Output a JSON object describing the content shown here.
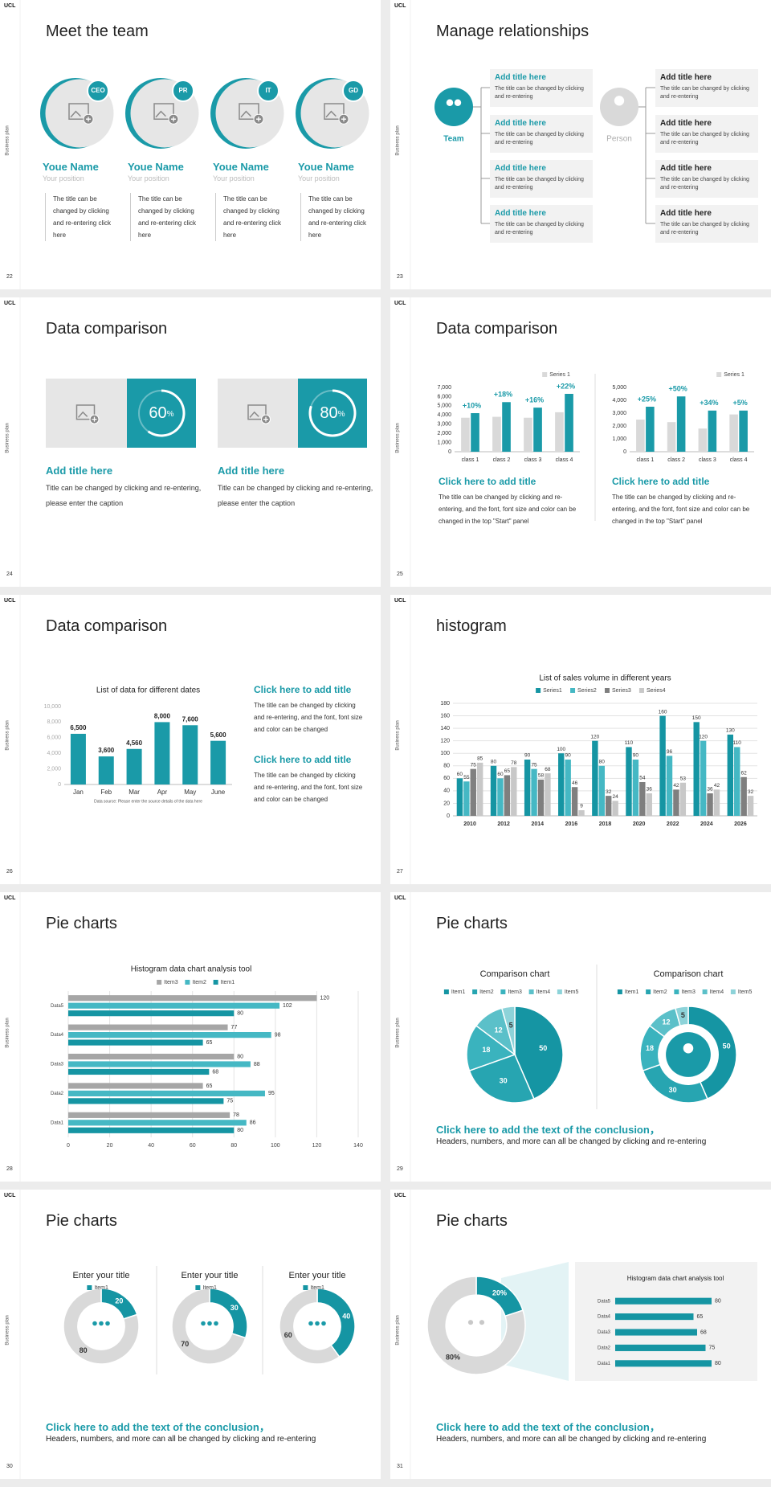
{
  "slides": [
    {
      "number": 22,
      "logo": "UCL",
      "side_text": "Business plan",
      "title": "Meet the team",
      "members": [
        {
          "badge": "CEO",
          "name": "Youe Name",
          "position": "Your position",
          "text": "The title can be changed by clicking and re-entering click here"
        },
        {
          "badge": "PR",
          "name": "Youe Name",
          "position": "Your position",
          "text": "The title can be changed by clicking and re-entering click here"
        },
        {
          "badge": "IT",
          "name": "Youe Name",
          "position": "Your position",
          "text": "The title can be changed by clicking and re-entering click here"
        },
        {
          "badge": "GD",
          "name": "Youe Name",
          "position": "Your position",
          "text": "The title can be changed by clicking and re-entering click here"
        }
      ]
    },
    {
      "number": 23,
      "logo": "UCL",
      "side_text": "Business plan",
      "title": "Manage relationships",
      "groups": [
        {
          "label": "Team",
          "items": [
            {
              "title": "Add title here",
              "text": "The title can be changed by clicking and re-entering"
            },
            {
              "title": "Add title here",
              "text": "The title can be changed by clicking and re-entering"
            },
            {
              "title": "Add title here",
              "text": "The title can be changed by clicking and re-entering"
            },
            {
              "title": "Add title here",
              "text": "The title can be changed by clicking and re-entering"
            }
          ]
        },
        {
          "label": "Person",
          "items": [
            {
              "title": "Add title here",
              "text": "The title can be changed by clicking and re-entering"
            },
            {
              "title": "Add title here",
              "text": "The title can be changed by clicking and re-entering"
            },
            {
              "title": "Add title here",
              "text": "The title can be changed by clicking and re-entering"
            },
            {
              "title": "Add title here",
              "text": "The title can be changed by clicking and re-entering"
            }
          ]
        }
      ]
    },
    {
      "number": 24,
      "logo": "UCL",
      "side_text": "Business plan",
      "title": "Data comparison",
      "cards": [
        {
          "percent": 60,
          "unit": "%",
          "title": "Add title here",
          "text": "Title can be changed by clicking and re-entering, please enter the caption"
        },
        {
          "percent": 80,
          "unit": "%",
          "title": "Add title here",
          "text": "Title can be changed by clicking and re-entering, please enter the caption"
        }
      ]
    },
    {
      "number": 25,
      "logo": "UCL",
      "side_text": "Business plan",
      "title": "Data comparison",
      "blocks": [
        {
          "heading": "Click here to add title",
          "text": "The title can be changed by clicking and re-entering, and the font, font size and color can be changed in the top \"Start\" panel"
        },
        {
          "heading": "Click here to add title",
          "text": "The title can be changed by clicking and re-entering, and the font, font size and color can be changed in the top \"Start\" panel"
        }
      ]
    },
    {
      "number": 26,
      "logo": "UCL",
      "side_text": "Business plan",
      "title": "Data comparison",
      "blocks": [
        {
          "heading": "Click here to add title",
          "text": "The title can be changed by clicking and re-entering, and the font, font size and color can be changed"
        },
        {
          "heading": "Click here to add title",
          "text": "The title can be changed by clicking and re-entering, and the font, font size and color can be changed"
        }
      ]
    },
    {
      "number": 27,
      "logo": "UCL",
      "side_text": "Business plan",
      "title": "histogram"
    },
    {
      "number": 28,
      "logo": "UCL",
      "side_text": "Business plan",
      "title": "Pie charts"
    },
    {
      "number": 29,
      "logo": "UCL",
      "side_text": "Business plan",
      "title": "Pie charts",
      "conclusion": {
        "heading": "Click here to add the text of the conclusion，",
        "text": "Headers, numbers, and more can all be changed by clicking and re-entering"
      }
    },
    {
      "number": 30,
      "logo": "UCL",
      "side_text": "Business plan",
      "title": "Pie charts",
      "conclusion": {
        "heading": "Click here to add the text of the conclusion，",
        "text": "Headers, numbers, and more can all be changed by clicking and re-entering"
      }
    },
    {
      "number": 31,
      "logo": "UCL",
      "side_text": "Business plan",
      "title": "Pie charts",
      "conclusion": {
        "heading": "Click here to add the text of the conclusion，",
        "text": "Headers, numbers, and more can all be changed by clicking and re-entering"
      }
    }
  ],
  "chart_data": [
    {
      "type": "bar",
      "categories": [
        "class 1",
        "class 2",
        "class 3",
        "class 4"
      ],
      "series": [
        {
          "name": "Series 1",
          "color": "#d9d9d9",
          "values": [
            3700,
            3800,
            3700,
            4300
          ]
        },
        {
          "color": "#1a9aa8",
          "values": [
            4200,
            5400,
            4800,
            6300
          ]
        }
      ],
      "annotations": [
        "+10%",
        "+18%",
        "+16%",
        "+22%"
      ],
      "ylim": [
        0,
        7000
      ],
      "yticks": [
        0,
        {
          "value": 1000,
          "label": "1,000"
        },
        {
          "value": 2000,
          "label": "2,000"
        },
        {
          "value": 3000,
          "label": "3,000"
        },
        {
          "value": 4000,
          "label": "4,000"
        },
        {
          "value": 5000,
          "label": "5,000"
        },
        {
          "value": 6000,
          "label": "6,000"
        },
        {
          "value": 7000,
          "label": "7,000"
        }
      ],
      "grid": false,
      "legend": "top-right"
    },
    {
      "type": "bar",
      "categories": [
        "class 1",
        "class 2",
        "class 3",
        "class 4"
      ],
      "series": [
        {
          "name": "Series 1",
          "color": "#d9d9d9",
          "values": [
            2500,
            2300,
            1800,
            2900
          ]
        },
        {
          "color": "#1a9aa8",
          "values": [
            3500,
            4300,
            3200,
            3200
          ]
        }
      ],
      "annotations": [
        "+25%",
        "+50%",
        "+34%",
        "+5%"
      ],
      "ylim": [
        0,
        5000
      ],
      "yticks": [
        0,
        {
          "value": 1000,
          "label": "1,000"
        },
        {
          "value": 2000,
          "label": "2,000"
        },
        {
          "value": 3000,
          "label": "3,000"
        },
        {
          "value": 4000,
          "label": "4,000"
        },
        {
          "value": 5000,
          "label": "5,000"
        }
      ],
      "grid": false,
      "legend": "top-right"
    },
    {
      "type": "bar",
      "title": "List of data for different dates",
      "categories": [
        "Jan",
        "Feb",
        "Mar",
        "Apr",
        "May",
        "June"
      ],
      "values": [
        6500,
        3600,
        4560,
        8000,
        7600,
        5600
      ],
      "value_labels": [
        "6,500",
        "3,600",
        "4,560",
        "8,000",
        "7,600",
        "5,600"
      ],
      "color": "#1a9aa8",
      "ylim": [
        0,
        10000
      ],
      "yticks": [
        0,
        {
          "value": 2000,
          "label": "2,000"
        },
        {
          "value": 4000,
          "label": "4,000"
        },
        {
          "value": 6000,
          "label": "6,000"
        },
        {
          "value": 8000,
          "label": "8,000"
        },
        {
          "value": 10000,
          "label": "10,000"
        }
      ],
      "grid": false,
      "note": "Data source: Please enter the source details of the data here"
    },
    {
      "type": "bar",
      "title": "List of sales volume in different years",
      "categories": [
        "2010",
        "2012",
        "2014",
        "2016",
        "2018",
        "2020",
        "2022",
        "2024",
        "2026"
      ],
      "series": [
        {
          "name": "Series1",
          "color": "#1595a3",
          "values": [
            60,
            80,
            90,
            100,
            120,
            110,
            160,
            150,
            130
          ]
        },
        {
          "name": "Series2",
          "color": "#45b8c4",
          "values": [
            55,
            60,
            75,
            90,
            80,
            90,
            96,
            120,
            110
          ]
        },
        {
          "name": "Series3",
          "color": "#7f7f7f",
          "values": [
            75,
            65,
            58,
            46,
            32,
            54,
            42,
            36,
            62
          ]
        },
        {
          "name": "Series4",
          "color": "#c8c8c8",
          "values": [
            85,
            78,
            68,
            9,
            24,
            36,
            53,
            42,
            32
          ]
        }
      ],
      "ylim": [
        0,
        180
      ],
      "yticks": [
        0,
        20,
        40,
        60,
        80,
        100,
        120,
        140,
        160,
        180
      ],
      "grid": true,
      "data_labels": true,
      "legend": "top"
    },
    {
      "type": "hbar",
      "title": "Histogram data chart analysis tool",
      "categories": [
        "Data1",
        "Data2",
        "Data3",
        "Data4",
        "Data5"
      ],
      "series": [
        {
          "name": "Item3",
          "color": "#a6a6a6",
          "values": [
            78,
            65,
            80,
            77,
            120
          ]
        },
        {
          "name": "Item2",
          "color": "#45b8c4",
          "values": [
            86,
            95,
            88,
            98,
            102
          ]
        },
        {
          "name": "Item1",
          "color": "#1595a3",
          "values": [
            80,
            75,
            68,
            65,
            80
          ]
        }
      ],
      "xlim": [
        0,
        140
      ],
      "xticks": [
        0,
        20,
        40,
        60,
        80,
        100,
        120,
        140
      ],
      "grid": true,
      "data_labels": true,
      "legend": "top"
    },
    {
      "type": "pie",
      "title": "Comparison chart",
      "categories": [
        "Item1",
        "Item2",
        "Item3",
        "Item4",
        "Item5"
      ],
      "values": [
        50,
        30,
        18,
        12,
        5
      ],
      "colors": [
        "#1595a3",
        "#27a5b1",
        "#3ab3be",
        "#5bc0c9",
        "#8dd3d9"
      ],
      "legend": "top"
    },
    {
      "type": "donut",
      "title": "Comparison chart",
      "categories": [
        "Item1",
        "Item2",
        "Item3",
        "Item4",
        "Item5"
      ],
      "values": [
        50,
        30,
        18,
        12,
        5
      ],
      "colors": [
        "#1595a3",
        "#27a5b1",
        "#3ab3be",
        "#5bc0c9",
        "#8dd3d9"
      ],
      "legend": "top"
    },
    {
      "type": "donut",
      "title": "Enter your title",
      "categories": [
        "Item1",
        null
      ],
      "values": [
        20,
        80
      ],
      "colors": [
        "#1595a3",
        "#d9d9d9"
      ],
      "legend": "top"
    },
    {
      "type": "donut",
      "title": "Enter your title",
      "categories": [
        "Item1",
        null
      ],
      "values": [
        30,
        70
      ],
      "colors": [
        "#1595a3",
        "#d9d9d9"
      ],
      "legend": "top"
    },
    {
      "type": "donut",
      "title": "Enter your title",
      "categories": [
        "Item1",
        null
      ],
      "values": [
        40,
        60
      ],
      "colors": [
        "#1595a3",
        "#d9d9d9"
      ],
      "legend": "top"
    },
    {
      "type": "donut",
      "values": [
        20,
        80
      ],
      "value_labels": [
        "20%",
        "80%"
      ],
      "colors": [
        "#1595a3",
        "#d9d9d9"
      ]
    },
    {
      "type": "hbar",
      "title": "Histogram data chart analysis tool",
      "categories": [
        "Data1",
        "Data2",
        "Data3",
        "Data4",
        "Data5"
      ],
      "values": [
        80,
        75,
        68,
        65,
        80
      ],
      "color": "#1595a3",
      "xlim": [
        0,
        100
      ],
      "data_labels": true
    }
  ]
}
